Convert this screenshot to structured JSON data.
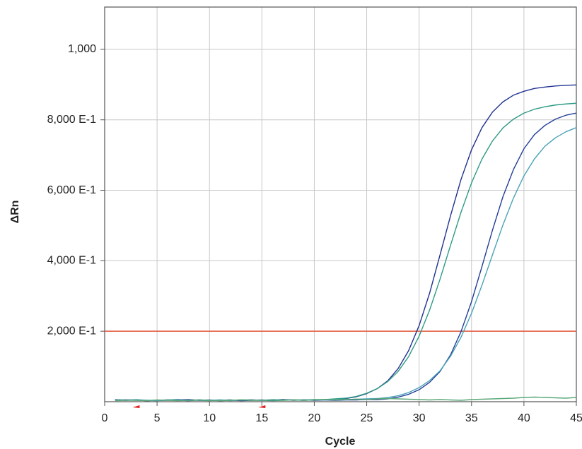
{
  "chart_data": {
    "type": "line",
    "x_label": "Cycle",
    "y_label": "ΔRn",
    "x": [
      1,
      2,
      3,
      4,
      5,
      6,
      7,
      8,
      9,
      10,
      11,
      12,
      13,
      14,
      15,
      16,
      17,
      18,
      19,
      20,
      21,
      22,
      23,
      24,
      25,
      26,
      27,
      28,
      29,
      30,
      31,
      32,
      33,
      34,
      35,
      36,
      37,
      38,
      39,
      40,
      41,
      42,
      43,
      44,
      45
    ],
    "series": [
      {
        "color": "#1f3190",
        "values": [
          6,
          4,
          5,
          3,
          4,
          5,
          4,
          3,
          5,
          4,
          4,
          5,
          3,
          4,
          5,
          4,
          6,
          5,
          4,
          5,
          6,
          7,
          9,
          14,
          23,
          37,
          59,
          94,
          145,
          216,
          308,
          417,
          528,
          631,
          715,
          778,
          822,
          851,
          870,
          881,
          889,
          893,
          896,
          898,
          899
        ]
      },
      {
        "color": "#2f9a86",
        "values": [
          5,
          5,
          4,
          4,
          3,
          5,
          6,
          4,
          4,
          3,
          5,
          4,
          5,
          5,
          4,
          3,
          4,
          5,
          5,
          6,
          6,
          8,
          10,
          15,
          24,
          37,
          57,
          86,
          128,
          186,
          260,
          348,
          444,
          538,
          621,
          689,
          740,
          777,
          802,
          819,
          830,
          837,
          842,
          845,
          847
        ]
      },
      {
        "color": "#223d98",
        "values": [
          4,
          5,
          5,
          3,
          4,
          4,
          5,
          6,
          4,
          5,
          3,
          4,
          4,
          5,
          4,
          5,
          6,
          4,
          5,
          4,
          5,
          4,
          5,
          5,
          6,
          6,
          8,
          13,
          21,
          34,
          55,
          86,
          133,
          199,
          284,
          384,
          487,
          582,
          659,
          718,
          758,
          784,
          802,
          813,
          819
        ]
      },
      {
        "color": "#4aa2b8",
        "values": [
          5,
          4,
          6,
          4,
          3,
          5,
          4,
          4,
          5,
          4,
          5,
          3,
          5,
          4,
          4,
          6,
          5,
          5,
          4,
          6,
          5,
          6,
          6,
          7,
          8,
          9,
          12,
          17,
          26,
          40,
          60,
          88,
          129,
          183,
          251,
          331,
          417,
          502,
          578,
          641,
          689,
          725,
          749,
          766,
          778
        ]
      },
      {
        "color": "#5aa878",
        "values": [
          3,
          4,
          4,
          3,
          5,
          4,
          3,
          4,
          5,
          4,
          3,
          4,
          5,
          4,
          4,
          5,
          4,
          5,
          4,
          5,
          6,
          5,
          6,
          7,
          6,
          8,
          9,
          8,
          7,
          6,
          5,
          6,
          5,
          4,
          6,
          7,
          8,
          9,
          10,
          12,
          13,
          12,
          11,
          10,
          12
        ]
      }
    ],
    "xlim": [
      0,
      45
    ],
    "ylim": [
      0,
      1120
    ],
    "xticks": [
      0,
      5,
      10,
      15,
      20,
      25,
      30,
      35,
      40,
      45
    ],
    "yticks": [
      {
        "value": 200,
        "label": "2,000 E-1"
      },
      {
        "value": 400,
        "label": "4,000 E-1"
      },
      {
        "value": 600,
        "label": "6,000 E-1"
      },
      {
        "value": 800,
        "label": "8,000 E-1"
      },
      {
        "value": 1000,
        "label": "1,000"
      }
    ],
    "grid": true,
    "grid_color": "#c8c8c8",
    "threshold": 200,
    "threshold_color": "#e2553a",
    "baseline_range": [
      3,
      15
    ],
    "baseline_marker_color": "#e02020"
  }
}
